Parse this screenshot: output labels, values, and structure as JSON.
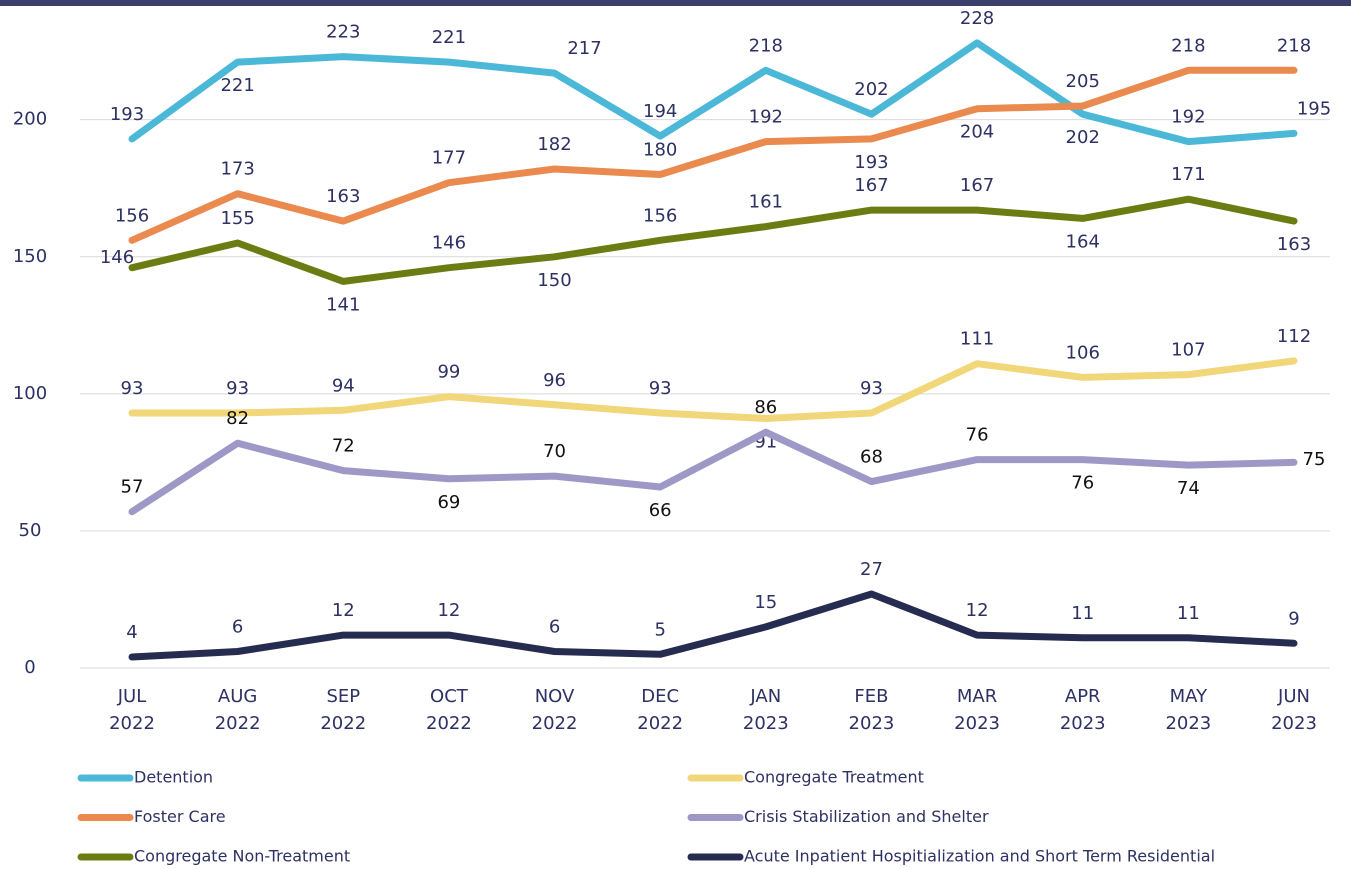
{
  "chart_data": {
    "type": "line",
    "categories": [
      [
        "JUL",
        "2022"
      ],
      [
        "AUG",
        "2022"
      ],
      [
        "SEP",
        "2022"
      ],
      [
        "OCT",
        "2022"
      ],
      [
        "NOV",
        "2022"
      ],
      [
        "DEC",
        "2022"
      ],
      [
        "JAN",
        "2023"
      ],
      [
        "FEB",
        "2023"
      ],
      [
        "MAR",
        "2023"
      ],
      [
        "APR",
        "2023"
      ],
      [
        "MAY",
        "2023"
      ],
      [
        "JUN",
        "2023"
      ]
    ],
    "ylim": [
      0,
      240
    ],
    "yticks": [
      0,
      50,
      100,
      150,
      200
    ],
    "grid": true,
    "series": [
      {
        "name": "Detention",
        "color": "#4bb8d8",
        "values": [
          193,
          221,
          223,
          221,
          217,
          194,
          218,
          202,
          228,
          202,
          192,
          195
        ]
      },
      {
        "name": "Foster Care",
        "color": "#ea8a4e",
        "values": [
          156,
          173,
          163,
          177,
          182,
          180,
          192,
          193,
          204,
          205,
          218,
          218
        ]
      },
      {
        "name": "Congregate Non-Treatment",
        "color": "#6b7d12",
        "values": [
          146,
          155,
          141,
          146,
          150,
          156,
          161,
          167,
          167,
          164,
          171,
          163
        ]
      },
      {
        "name": "Congregate Treatment",
        "color": "#f1d77a",
        "values": [
          93,
          93,
          94,
          99,
          96,
          93,
          91,
          93,
          111,
          106,
          107,
          112
        ]
      },
      {
        "name": "Crisis Stabilization and Shelter",
        "color": "#9e98c7",
        "values": [
          57,
          82,
          72,
          69,
          70,
          66,
          86,
          68,
          76,
          76,
          74,
          75
        ]
      },
      {
        "name": "Acute Inpatient Hospitialization and Short Term Residential",
        "color": "#262c50",
        "values": [
          4,
          6,
          12,
          12,
          6,
          5,
          15,
          27,
          12,
          11,
          11,
          9
        ]
      }
    ]
  }
}
